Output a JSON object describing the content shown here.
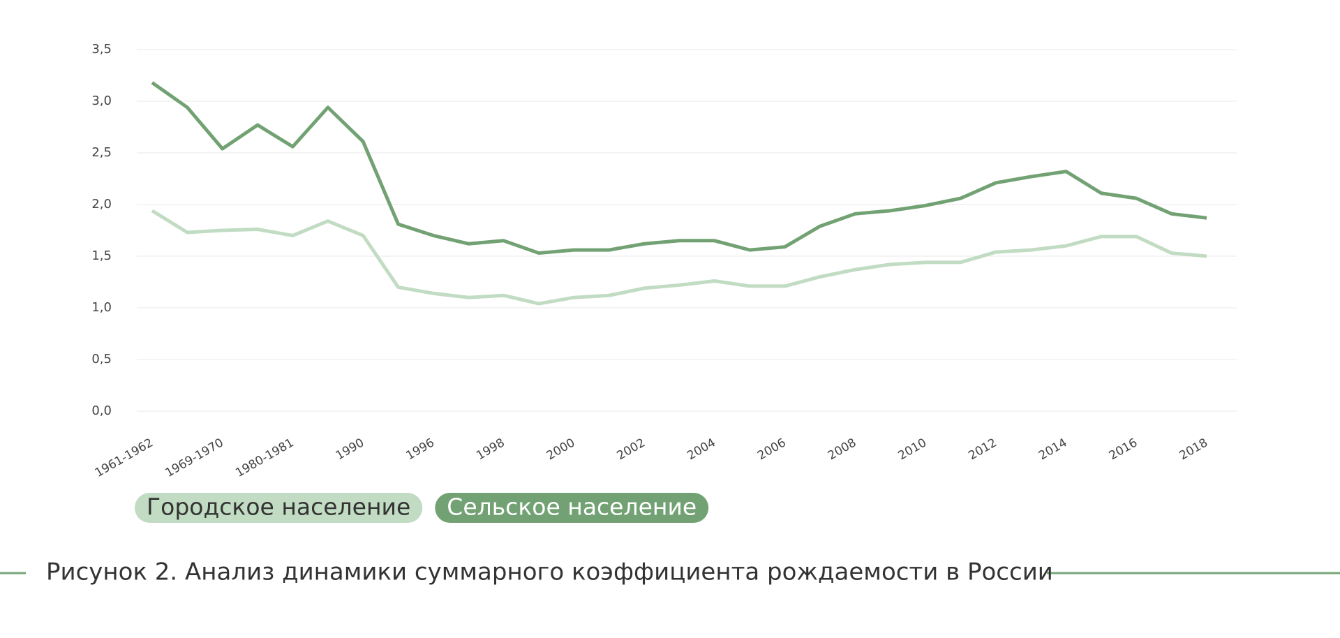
{
  "chart_data": {
    "type": "line",
    "title": "Рисунок 2. Анализ динамики суммарного коэффициента рождаемости в России",
    "categories": [
      "1961-1962",
      null,
      "1969-1970",
      null,
      "1980-1981",
      null,
      "1990",
      null,
      "1996",
      null,
      "1998",
      null,
      "2000",
      null,
      "2002",
      null,
      "2004",
      null,
      "2006",
      null,
      "2008",
      null,
      "2010",
      null,
      "2012",
      null,
      "2014",
      null,
      "2016",
      null,
      "2018"
    ],
    "series": [
      {
        "name": "Городское население",
        "color": "#c1dcc3",
        "values": [
          1.94,
          1.73,
          1.75,
          1.76,
          1.7,
          1.84,
          1.7,
          1.2,
          1.14,
          1.1,
          1.12,
          1.04,
          1.1,
          1.12,
          1.19,
          1.22,
          1.26,
          1.21,
          1.21,
          1.3,
          1.37,
          1.42,
          1.44,
          1.44,
          1.54,
          1.56,
          1.6,
          1.69,
          1.69,
          1.53,
          1.5
        ]
      },
      {
        "name": "Сельское население",
        "color": "#72a273",
        "values": [
          3.18,
          2.94,
          2.54,
          2.77,
          2.56,
          2.94,
          2.61,
          1.81,
          1.7,
          1.62,
          1.65,
          1.53,
          1.56,
          1.56,
          1.62,
          1.65,
          1.65,
          1.56,
          1.59,
          1.79,
          1.91,
          1.94,
          1.99,
          2.06,
          2.21,
          2.27,
          2.32,
          2.11,
          2.06,
          1.91,
          1.87
        ]
      }
    ],
    "ylim": [
      0,
      3.5
    ],
    "yticks": [
      {
        "value": 0,
        "label": "0,0"
      },
      {
        "value": 0.5,
        "label": "0,5"
      },
      {
        "value": 1,
        "label": "1,0"
      },
      {
        "value": 1.5,
        "label": "1,5"
      },
      {
        "value": 2,
        "label": "2,0"
      },
      {
        "value": 2.5,
        "label": "2,5"
      },
      {
        "value": 3,
        "label": "3,0"
      },
      {
        "value": 3.5,
        "label": "3,5"
      }
    ],
    "grid": true
  }
}
